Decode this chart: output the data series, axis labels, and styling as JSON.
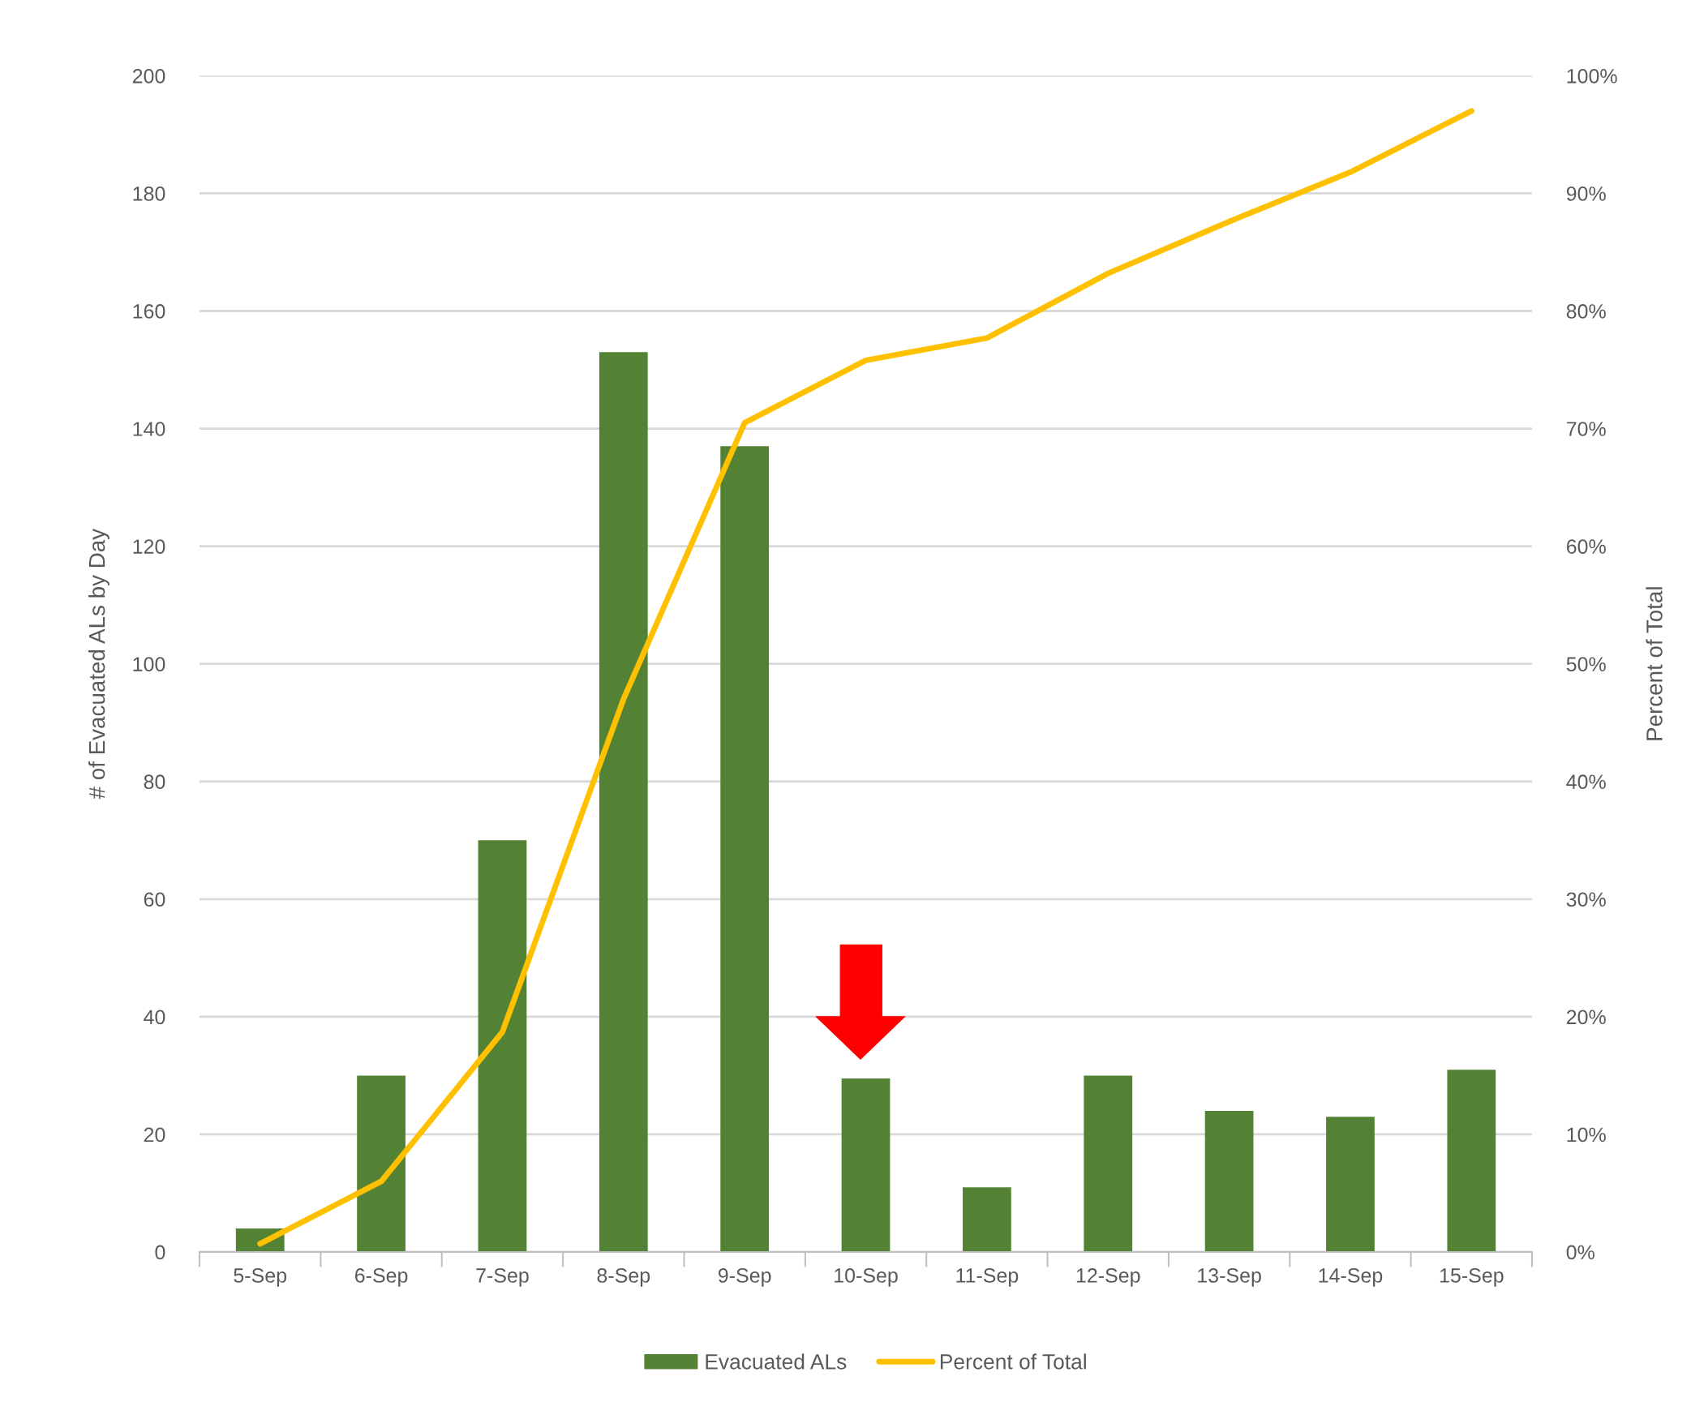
{
  "chart_data": {
    "type": "bar",
    "categories": [
      "5-Sep",
      "6-Sep",
      "7-Sep",
      "8-Sep",
      "9-Sep",
      "10-Sep",
      "11-Sep",
      "12-Sep",
      "13-Sep",
      "14-Sep",
      "15-Sep"
    ],
    "series": [
      {
        "name": "Evacuated ALs",
        "color": "#548235",
        "values": [
          4,
          30,
          70,
          153,
          137,
          29.5,
          11,
          30,
          24,
          23,
          31
        ]
      },
      {
        "name": "Percent of Total",
        "type": "line",
        "axis": "y2",
        "color": "#ffc000",
        "values": [
          0.7,
          6,
          18.7,
          47,
          70.5,
          75.8,
          77.7,
          83.2,
          87.6,
          91.8,
          97
        ]
      }
    ],
    "ylabel": "# of Evacuated ALs by Day",
    "y2label": "Percent of Total",
    "ylim": [
      0,
      200
    ],
    "yticks": [
      0,
      20,
      40,
      60,
      80,
      100,
      120,
      140,
      160,
      180,
      200
    ],
    "y2lim": [
      0,
      100
    ],
    "y2ticks": [
      {
        "value": 0,
        "label": "0%"
      },
      {
        "value": 10,
        "label": "10%"
      },
      {
        "value": 20,
        "label": "20%"
      },
      {
        "value": 30,
        "label": "30%"
      },
      {
        "value": 40,
        "label": "40%"
      },
      {
        "value": 50,
        "label": "50%"
      },
      {
        "value": 60,
        "label": "60%"
      },
      {
        "value": 70,
        "label": "70%"
      },
      {
        "value": 80,
        "label": "80%"
      },
      {
        "value": 90,
        "label": "90%"
      },
      {
        "value": 100,
        "label": "100%"
      }
    ],
    "grid": "y",
    "legend": "bottom",
    "marker": "none"
  }
}
